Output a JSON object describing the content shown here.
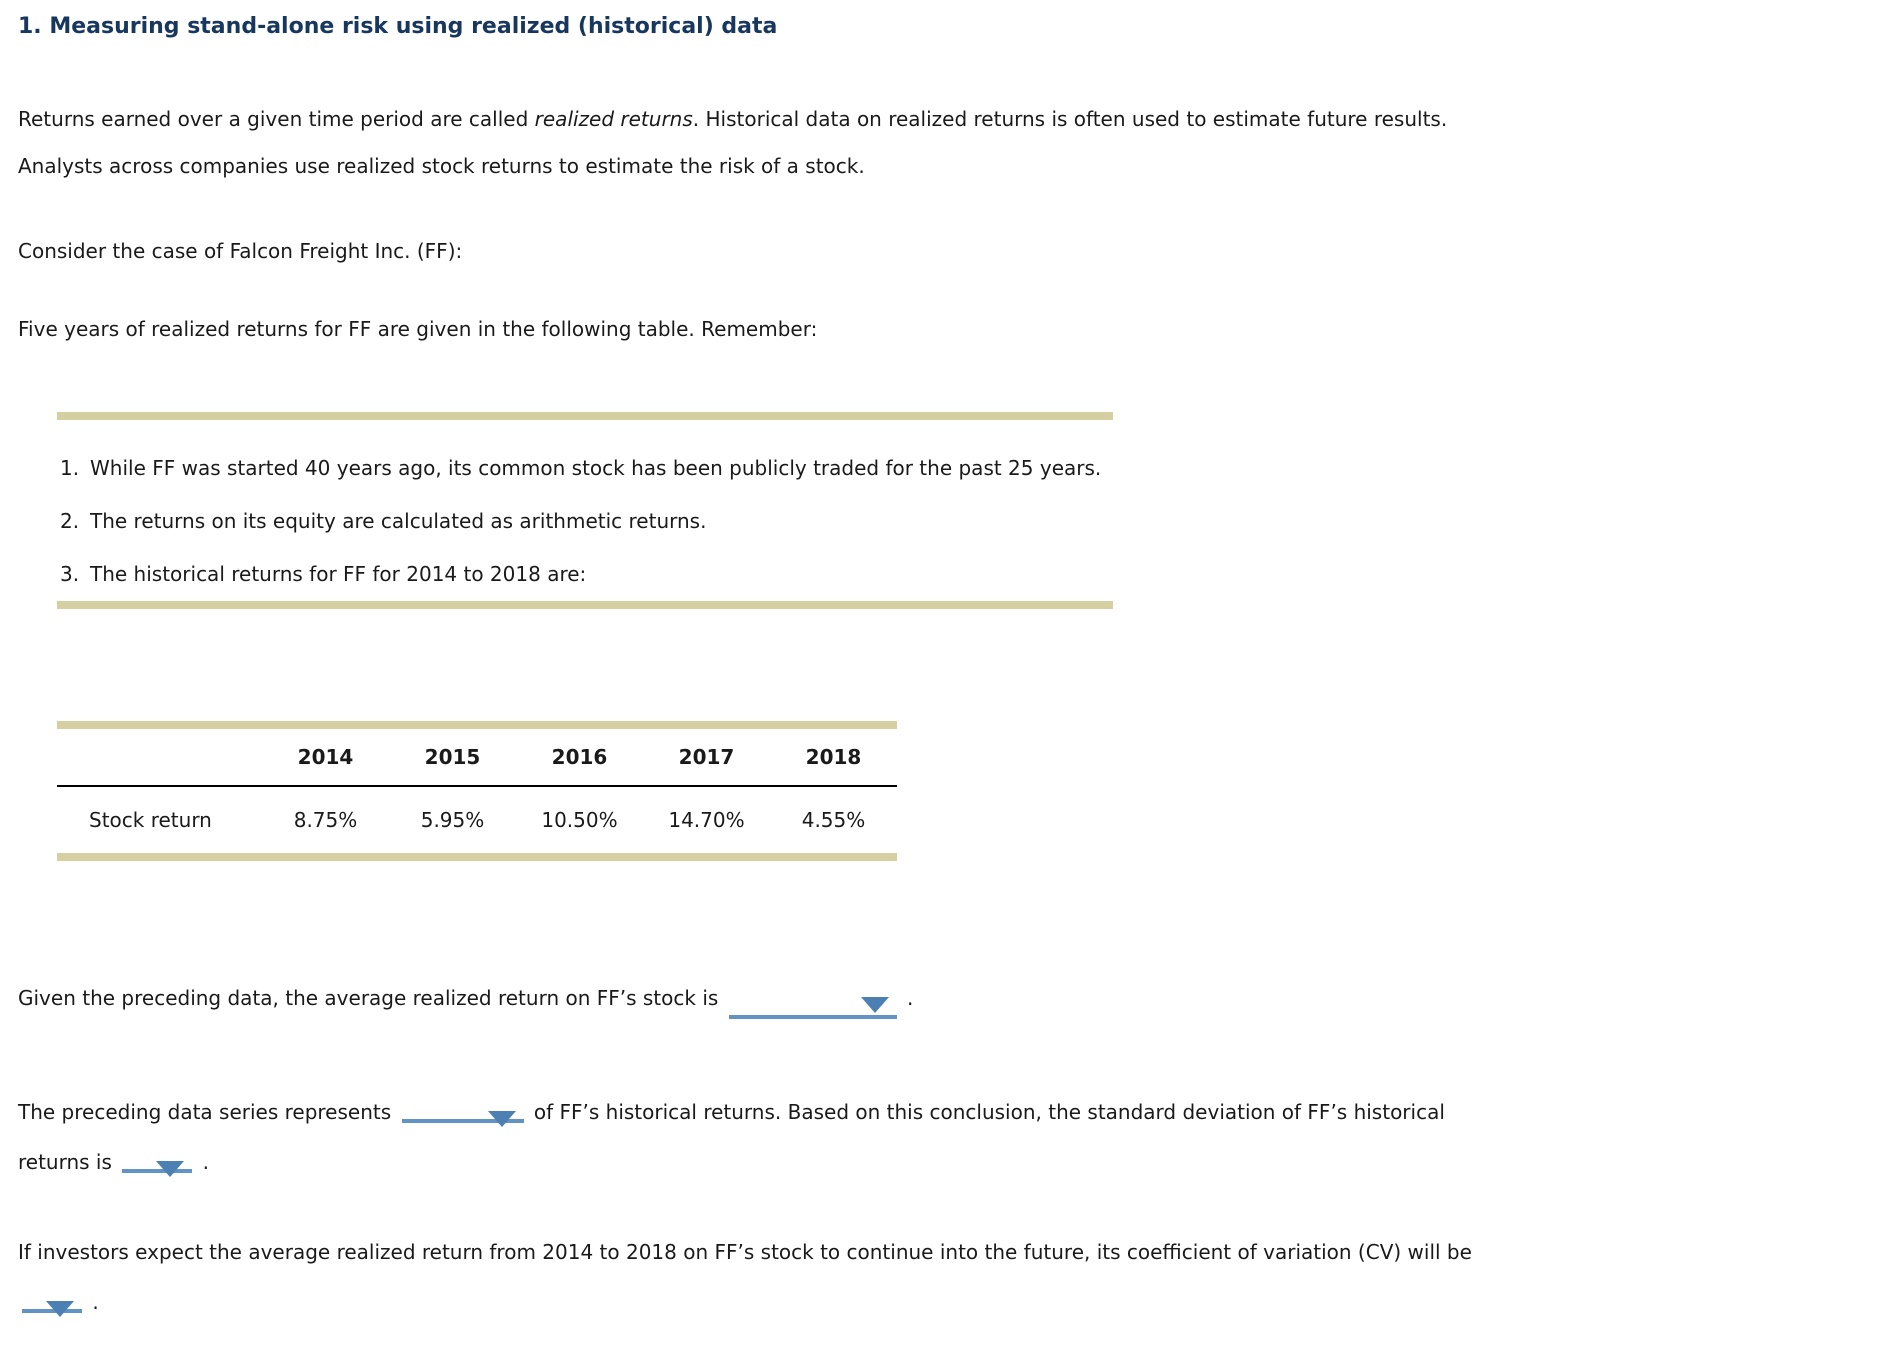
{
  "page": {
    "title": "1. Measuring stand-alone risk using realized (historical) data"
  },
  "intro": {
    "line1_part1": "Returns earned over a given time period are called",
    "line1_italic": "realized returns",
    "line1_part2": ". Historical data on realized returns is often used to estimate future results.",
    "line2": "Analysts across companies use realized stock returns to estimate the risk of a stock.",
    "consider": "Consider the case of Falcon Freight Inc. (FF):",
    "five_years": "Five years of realized returns for FF are given in the following table. Remember:"
  },
  "reminder_box": {
    "items": [
      {
        "num": "1.",
        "text": "While FF was started 40 years ago, its common stock has been publicly traded for the past 25 years."
      },
      {
        "num": "2.",
        "text": "The returns on its equity are calculated as arithmetic returns."
      },
      {
        "num": "3.",
        "text": "The historical returns for FF for 2014 to 2018 are:"
      }
    ]
  },
  "returns_table": {
    "row_label": "Stock return",
    "years": [
      "2014",
      "2015",
      "2016",
      "2017",
      "2018"
    ],
    "values": [
      "8.75%",
      "5.95%",
      "10.50%",
      "14.70%",
      "4.55%"
    ]
  },
  "questions": {
    "q1": {
      "text": "Given the preceding data, the average realized return on FF’s stock is",
      "period": "."
    },
    "q2": {
      "part1": "The preceding data series represents",
      "part2": "of FF’s historical returns. Based on this conclusion, the standard deviation of FF’s historical",
      "part3": "returns is",
      "period": "."
    },
    "q3": {
      "text": "If investors expect the average realized return from 2014 to 2018 on FF’s stock to continue into the future, its coefficient of variation (CV) will be",
      "period": "."
    }
  },
  "icons": {
    "dropdown_arrow": "down-triangle"
  },
  "colors": {
    "title_navy": "#17375e",
    "rule_tan": "#d5cfa2",
    "blank_underline_blue": "#6193c4",
    "dropdown_arrow_blue": "#4d80b2",
    "table_rule_black": "#000000",
    "body_text": "#1a1a1a"
  }
}
